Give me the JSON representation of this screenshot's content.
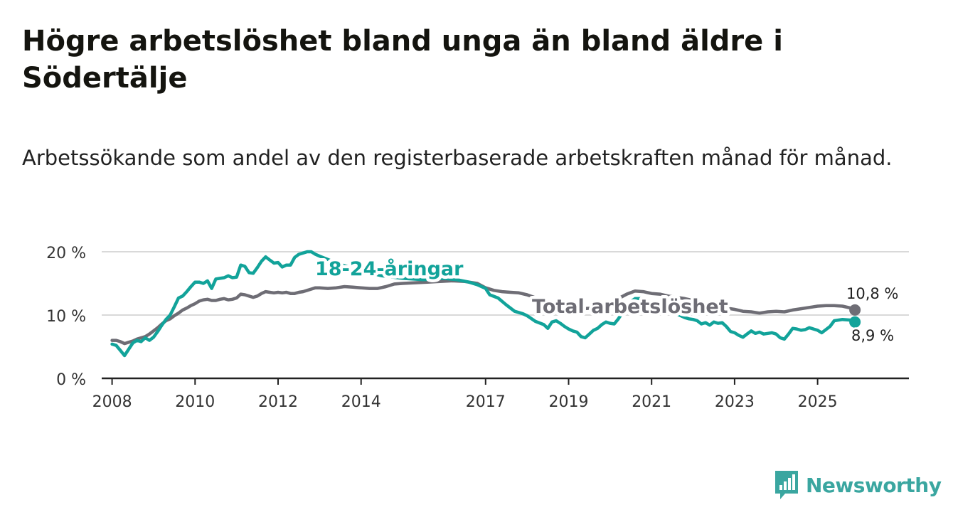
{
  "title": "Högre arbetslöshet bland unga än bland äldre i Södertälje",
  "subtitle": "Arbetssökande som andel av den registerbaserade arbetskraften månad för månad.",
  "brand": {
    "name": "Newsworthy",
    "icon": "newsworthy-logo-icon",
    "color": "#3aa6a0"
  },
  "colors": {
    "youth": "#12a39a",
    "total": "#6e6d75",
    "grid": "#d9d9d9",
    "axis": "#222222"
  },
  "chart_data": {
    "type": "line",
    "ylim": [
      0,
      20
    ],
    "y_ticks": [
      0,
      10,
      20
    ],
    "y_tick_labels": [
      "0 %",
      "10 %",
      "20 %"
    ],
    "xlim": [
      2007.75,
      2027.2
    ],
    "x_ticks": [
      2008,
      2010,
      2012,
      2014,
      2017,
      2019,
      2021,
      2023,
      2025
    ],
    "x_tick_labels": [
      "2008",
      "2010",
      "2012",
      "2014",
      "2017",
      "2019",
      "2021",
      "2023",
      "2025"
    ],
    "series": [
      {
        "name": "18-24-åringar",
        "label": "18-24-åringar",
        "end_label": "8,9 %",
        "end_value": 8.9,
        "points": [
          [
            2008.0,
            5.4
          ],
          [
            2008.1,
            5.2
          ],
          [
            2008.2,
            4.4
          ],
          [
            2008.3,
            3.6
          ],
          [
            2008.4,
            4.6
          ],
          [
            2008.5,
            5.6
          ],
          [
            2008.6,
            6.0
          ],
          [
            2008.7,
            5.8
          ],
          [
            2008.8,
            6.4
          ],
          [
            2008.9,
            6.0
          ],
          [
            2009.0,
            6.5
          ],
          [
            2009.1,
            7.4
          ],
          [
            2009.2,
            8.4
          ],
          [
            2009.3,
            9.3
          ],
          [
            2009.4,
            10.0
          ],
          [
            2009.5,
            11.3
          ],
          [
            2009.6,
            12.7
          ],
          [
            2009.7,
            13.0
          ],
          [
            2009.8,
            13.7
          ],
          [
            2009.9,
            14.5
          ],
          [
            2010.0,
            15.2
          ],
          [
            2010.1,
            15.2
          ],
          [
            2010.2,
            15.0
          ],
          [
            2010.3,
            15.4
          ],
          [
            2010.4,
            14.2
          ],
          [
            2010.5,
            15.7
          ],
          [
            2010.6,
            15.8
          ],
          [
            2010.7,
            15.9
          ],
          [
            2010.8,
            16.2
          ],
          [
            2010.9,
            15.9
          ],
          [
            2011.0,
            16.0
          ],
          [
            2011.1,
            17.9
          ],
          [
            2011.2,
            17.7
          ],
          [
            2011.3,
            16.7
          ],
          [
            2011.4,
            16.6
          ],
          [
            2011.5,
            17.5
          ],
          [
            2011.6,
            18.5
          ],
          [
            2011.7,
            19.2
          ],
          [
            2011.8,
            18.7
          ],
          [
            2011.9,
            18.2
          ],
          [
            2012.0,
            18.3
          ],
          [
            2012.1,
            17.6
          ],
          [
            2012.2,
            17.9
          ],
          [
            2012.3,
            17.9
          ],
          [
            2012.4,
            19.1
          ],
          [
            2012.5,
            19.6
          ],
          [
            2012.6,
            19.8
          ],
          [
            2012.7,
            20.0
          ],
          [
            2012.8,
            20.0
          ],
          [
            2012.9,
            19.6
          ],
          [
            2013.0,
            19.3
          ],
          [
            2013.5,
            18.0
          ],
          [
            2014.0,
            17.0
          ],
          [
            2014.5,
            16.2
          ],
          [
            2015.0,
            15.8
          ],
          [
            2015.5,
            15.6
          ],
          [
            2016.0,
            15.8
          ],
          [
            2016.3,
            15.6
          ],
          [
            2016.6,
            15.2
          ],
          [
            2016.8,
            14.8
          ],
          [
            2017.0,
            14.2
          ],
          [
            2017.1,
            13.2
          ],
          [
            2017.3,
            12.7
          ],
          [
            2017.5,
            11.6
          ],
          [
            2017.7,
            10.6
          ],
          [
            2017.9,
            10.2
          ],
          [
            2018.0,
            9.9
          ],
          [
            2018.2,
            9.0
          ],
          [
            2018.4,
            8.5
          ],
          [
            2018.5,
            7.9
          ],
          [
            2018.6,
            8.9
          ],
          [
            2018.7,
            9.1
          ],
          [
            2018.8,
            8.7
          ],
          [
            2018.9,
            8.2
          ],
          [
            2019.0,
            7.8
          ],
          [
            2019.1,
            7.5
          ],
          [
            2019.2,
            7.3
          ],
          [
            2019.3,
            6.6
          ],
          [
            2019.4,
            6.4
          ],
          [
            2019.5,
            7.0
          ],
          [
            2019.6,
            7.6
          ],
          [
            2019.7,
            7.9
          ],
          [
            2019.8,
            8.5
          ],
          [
            2019.9,
            8.9
          ],
          [
            2020.0,
            8.7
          ],
          [
            2020.1,
            8.6
          ],
          [
            2020.2,
            9.4
          ],
          [
            2020.3,
            10.4
          ],
          [
            2020.4,
            11.6
          ],
          [
            2020.6,
            12.6
          ],
          [
            2020.8,
            12.6
          ],
          [
            2021.0,
            12.0
          ],
          [
            2021.3,
            11.0
          ],
          [
            2021.6,
            10.2
          ],
          [
            2021.8,
            9.6
          ],
          [
            2021.9,
            9.4
          ],
          [
            2022.0,
            9.3
          ],
          [
            2022.1,
            9.1
          ],
          [
            2022.2,
            8.6
          ],
          [
            2022.3,
            8.8
          ],
          [
            2022.4,
            8.4
          ],
          [
            2022.5,
            8.9
          ],
          [
            2022.6,
            8.7
          ],
          [
            2022.7,
            8.8
          ],
          [
            2022.8,
            8.2
          ],
          [
            2022.9,
            7.4
          ],
          [
            2023.0,
            7.2
          ],
          [
            2023.1,
            6.8
          ],
          [
            2023.2,
            6.5
          ],
          [
            2023.3,
            7.0
          ],
          [
            2023.4,
            7.5
          ],
          [
            2023.5,
            7.1
          ],
          [
            2023.6,
            7.3
          ],
          [
            2023.7,
            7.0
          ],
          [
            2023.8,
            7.1
          ],
          [
            2023.9,
            7.2
          ],
          [
            2024.0,
            7.0
          ],
          [
            2024.1,
            6.4
          ],
          [
            2024.2,
            6.2
          ],
          [
            2024.3,
            7.0
          ],
          [
            2024.4,
            7.9
          ],
          [
            2024.5,
            7.8
          ],
          [
            2024.6,
            7.6
          ],
          [
            2024.7,
            7.7
          ],
          [
            2024.8,
            8.0
          ],
          [
            2024.9,
            7.8
          ],
          [
            2025.0,
            7.6
          ],
          [
            2025.1,
            7.2
          ],
          [
            2025.3,
            8.2
          ],
          [
            2025.4,
            9.1
          ],
          [
            2025.6,
            9.3
          ],
          [
            2025.8,
            9.2
          ],
          [
            2025.9,
            8.9
          ]
        ]
      },
      {
        "name": "Total arbetslöshet",
        "label": "Total arbetslöshet",
        "end_label": "10,8 %",
        "end_value": 10.8,
        "points": [
          [
            2008.0,
            6.0
          ],
          [
            2008.1,
            6.0
          ],
          [
            2008.2,
            5.8
          ],
          [
            2008.3,
            5.5
          ],
          [
            2008.4,
            5.7
          ],
          [
            2008.5,
            5.9
          ],
          [
            2008.6,
            6.2
          ],
          [
            2008.7,
            6.4
          ],
          [
            2008.8,
            6.6
          ],
          [
            2008.9,
            7.0
          ],
          [
            2009.0,
            7.5
          ],
          [
            2009.1,
            8.0
          ],
          [
            2009.2,
            8.6
          ],
          [
            2009.3,
            9.1
          ],
          [
            2009.4,
            9.4
          ],
          [
            2009.5,
            9.9
          ],
          [
            2009.6,
            10.3
          ],
          [
            2009.7,
            10.8
          ],
          [
            2009.8,
            11.1
          ],
          [
            2009.9,
            11.5
          ],
          [
            2010.0,
            11.8
          ],
          [
            2010.1,
            12.2
          ],
          [
            2010.2,
            12.4
          ],
          [
            2010.3,
            12.5
          ],
          [
            2010.4,
            12.3
          ],
          [
            2010.5,
            12.3
          ],
          [
            2010.6,
            12.5
          ],
          [
            2010.7,
            12.6
          ],
          [
            2010.8,
            12.4
          ],
          [
            2010.9,
            12.5
          ],
          [
            2011.0,
            12.7
          ],
          [
            2011.1,
            13.3
          ],
          [
            2011.2,
            13.2
          ],
          [
            2011.3,
            13.0
          ],
          [
            2011.4,
            12.8
          ],
          [
            2011.5,
            13.0
          ],
          [
            2011.6,
            13.4
          ],
          [
            2011.7,
            13.7
          ],
          [
            2011.8,
            13.6
          ],
          [
            2011.9,
            13.5
          ],
          [
            2012.0,
            13.6
          ],
          [
            2012.1,
            13.5
          ],
          [
            2012.2,
            13.6
          ],
          [
            2012.3,
            13.4
          ],
          [
            2012.4,
            13.4
          ],
          [
            2012.5,
            13.6
          ],
          [
            2012.6,
            13.7
          ],
          [
            2012.7,
            13.9
          ],
          [
            2012.8,
            14.1
          ],
          [
            2012.9,
            14.3
          ],
          [
            2013.0,
            14.3
          ],
          [
            2013.2,
            14.2
          ],
          [
            2013.4,
            14.3
          ],
          [
            2013.6,
            14.5
          ],
          [
            2013.8,
            14.4
          ],
          [
            2014.0,
            14.3
          ],
          [
            2014.2,
            14.2
          ],
          [
            2014.4,
            14.2
          ],
          [
            2014.6,
            14.5
          ],
          [
            2014.8,
            14.9
          ],
          [
            2015.0,
            15.0
          ],
          [
            2015.3,
            15.1
          ],
          [
            2015.6,
            15.2
          ],
          [
            2015.9,
            15.3
          ],
          [
            2016.2,
            15.4
          ],
          [
            2016.5,
            15.3
          ],
          [
            2016.8,
            15.0
          ],
          [
            2017.0,
            14.3
          ],
          [
            2017.2,
            13.9
          ],
          [
            2017.4,
            13.7
          ],
          [
            2017.6,
            13.6
          ],
          [
            2017.8,
            13.5
          ],
          [
            2018.0,
            13.2
          ],
          [
            2018.3,
            12.5
          ],
          [
            2018.6,
            11.8
          ],
          [
            2019.0,
            11.3
          ],
          [
            2019.3,
            11.0
          ],
          [
            2019.6,
            11.1
          ],
          [
            2019.9,
            11.8
          ],
          [
            2020.2,
            12.6
          ],
          [
            2020.4,
            13.3
          ],
          [
            2020.6,
            13.8
          ],
          [
            2020.8,
            13.7
          ],
          [
            2021.0,
            13.4
          ],
          [
            2021.2,
            13.3
          ],
          [
            2021.4,
            13.0
          ],
          [
            2021.6,
            12.8
          ],
          [
            2021.8,
            12.6
          ],
          [
            2022.0,
            12.3
          ],
          [
            2022.2,
            12.0
          ],
          [
            2022.4,
            11.5
          ],
          [
            2022.6,
            11.1
          ],
          [
            2022.8,
            11.1
          ],
          [
            2023.0,
            10.9
          ],
          [
            2023.2,
            10.6
          ],
          [
            2023.4,
            10.5
          ],
          [
            2023.6,
            10.3
          ],
          [
            2023.8,
            10.5
          ],
          [
            2024.0,
            10.6
          ],
          [
            2024.2,
            10.5
          ],
          [
            2024.4,
            10.8
          ],
          [
            2024.6,
            11.0
          ],
          [
            2024.8,
            11.2
          ],
          [
            2025.0,
            11.4
          ],
          [
            2025.2,
            11.5
          ],
          [
            2025.4,
            11.5
          ],
          [
            2025.6,
            11.4
          ],
          [
            2025.8,
            11.1
          ],
          [
            2025.9,
            10.8
          ]
        ]
      }
    ]
  }
}
